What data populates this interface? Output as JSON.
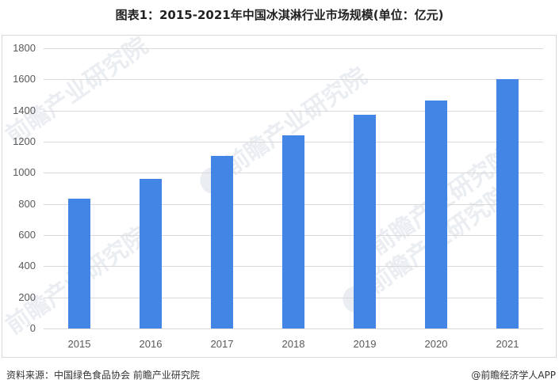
{
  "title": "图表1：2015-2021年中国冰淇淋行业市场规模(单位：亿元)",
  "footer": {
    "source": "资料来源：中国绿色食品协会 前瞻产业研究院",
    "credit": "@前瞻经济学人APP"
  },
  "watermark": "前瞻产业研究院",
  "colors": {
    "bar": "#4285e4",
    "grid": "#d9d9d9"
  },
  "chart_data": {
    "type": "bar",
    "title": "图表1：2015-2021年中国冰淇淋行业市场规模(单位：亿元)",
    "xlabel": "",
    "ylabel": "",
    "categories": [
      "2015",
      "2016",
      "2017",
      "2018",
      "2019",
      "2020",
      "2021"
    ],
    "values": [
      836,
      960,
      1107,
      1241,
      1375,
      1466,
      1600
    ],
    "ylim": [
      0,
      1800
    ],
    "yticks": [
      "0",
      "200",
      "400",
      "600",
      "800",
      "1000",
      "1200",
      "1400",
      "1600",
      "1800"
    ],
    "grid": true,
    "legend": "none"
  }
}
